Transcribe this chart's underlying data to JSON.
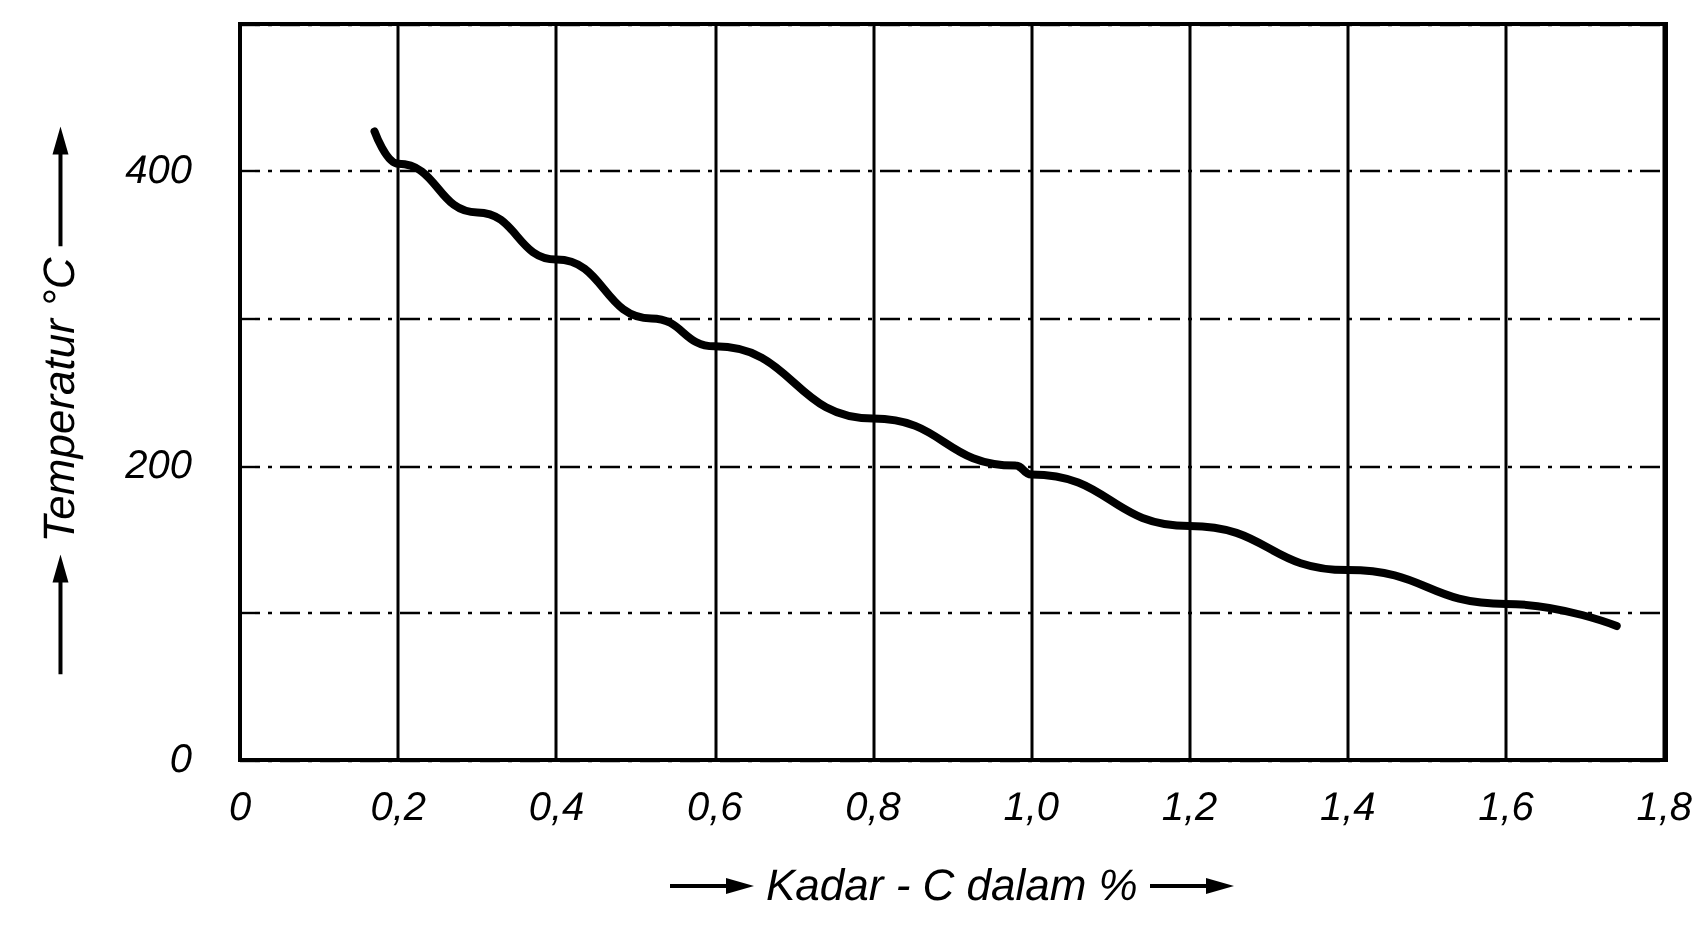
{
  "chart_data": {
    "type": "line",
    "xlabel": "Kadar - C dalam %",
    "ylabel": "Temperatur °C",
    "xlim": [
      0,
      1.8
    ],
    "ylim": [
      0,
      500
    ],
    "xticks": [
      0,
      {
        "value": 0.2,
        "label": "0,2"
      },
      {
        "value": 0.4,
        "label": "0,4"
      },
      {
        "value": 0.6,
        "label": "0,6"
      },
      {
        "value": 0.8,
        "label": "0,8"
      },
      {
        "value": 1.0,
        "label": "1,0"
      },
      {
        "value": 1.2,
        "label": "1,2"
      },
      {
        "value": 1.4,
        "label": "1,4"
      },
      {
        "value": 1.6,
        "label": "1,6"
      },
      {
        "value": 1.8,
        "label": "1,8"
      }
    ],
    "yticks": [
      0,
      {
        "value": 100,
        "label": null
      },
      200,
      {
        "value": 300,
        "label": null
      },
      400,
      {
        "value": 500,
        "label": null
      }
    ],
    "grid": true,
    "marker": "none",
    "line_style": "solid",
    "series": [
      {
        "color": "#000000",
        "x": [
          0.17,
          0.2,
          0.3,
          0.4,
          0.52,
          0.6,
          0.8,
          0.98,
          1.0,
          1.2,
          1.4,
          1.6,
          1.74
        ],
        "values": [
          427,
          405,
          372,
          340,
          300,
          281,
          232,
          200,
          194,
          159,
          129,
          106,
          91
        ]
      }
    ]
  }
}
